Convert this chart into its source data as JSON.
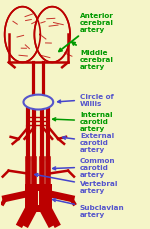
{
  "bg_color": "#f5f5c8",
  "artery_color": "#bb0000",
  "circle_willis_color": "#5555cc",
  "arrow_color_green": "#009900",
  "arrow_color_blue": "#4444cc",
  "font_size": 5.2,
  "labels": {
    "anterior_cerebral": {
      "text": "Anterior\ncerebral\nartery",
      "color": "#009900"
    },
    "middle_cerebral": {
      "text": "Middle\ncerebral\nartery",
      "color": "#009900"
    },
    "circle_willis": {
      "text": "Circle of\nWillis",
      "color": "#5555cc"
    },
    "internal_carotid": {
      "text": "Internal\ncarotid\nartery",
      "color": "#009900"
    },
    "external_carotid": {
      "text": "External\ncarotid\nartery",
      "color": "#5555cc"
    },
    "common_carotid": {
      "text": "Common\ncarotid\nartery",
      "color": "#5555cc"
    },
    "vertebral": {
      "text": "Vertebral\nartery",
      "color": "#5555cc"
    },
    "subclavian": {
      "text": "Subclavian\nartery",
      "color": "#5555cc"
    }
  }
}
